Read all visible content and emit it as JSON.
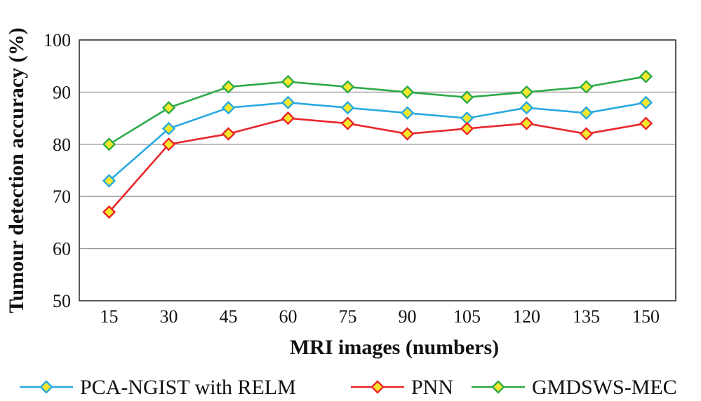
{
  "chart_data": {
    "type": "line",
    "xlabel": "MRI images (numbers)",
    "ylabel": "Tumour detection accuracy (%)",
    "x": [
      15,
      30,
      45,
      60,
      75,
      90,
      105,
      120,
      135,
      150
    ],
    "ylim": [
      50,
      100
    ],
    "yticks": [
      50,
      60,
      70,
      80,
      90,
      100
    ],
    "grid": "horizontal",
    "legend_position": "bottom",
    "marker": "diamond",
    "marker_fill": "#f5e82a",
    "series": [
      {
        "name": "PCA-NGIST with RELM",
        "color": "#29a9e0",
        "values": [
          73,
          83,
          87,
          88,
          87,
          86,
          85,
          87,
          86,
          88
        ]
      },
      {
        "name": "PNN",
        "color": "#e8262b",
        "values": [
          67,
          80,
          82,
          85,
          84,
          82,
          83,
          84,
          82,
          84
        ]
      },
      {
        "name": "GMDSWS-MEC",
        "color": "#2eaa4a",
        "values": [
          80,
          87,
          91,
          92,
          91,
          90,
          89,
          90,
          91,
          93
        ]
      }
    ]
  }
}
